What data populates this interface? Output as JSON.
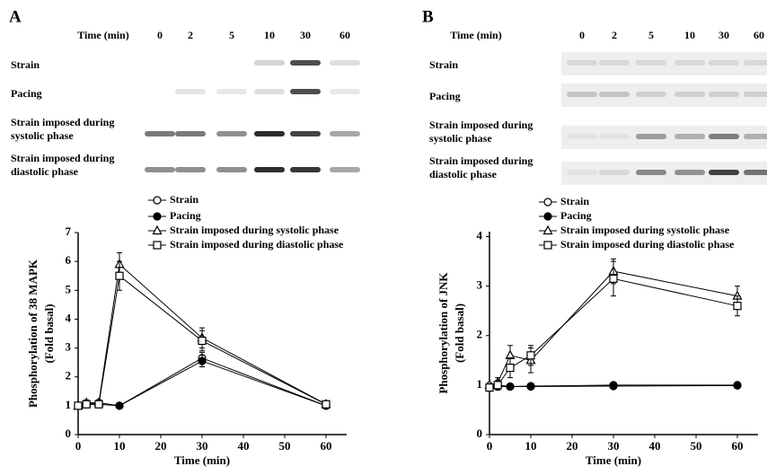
{
  "panels": [
    {
      "label": "A",
      "blot": {
        "time_header": "Time (min)",
        "times": [
          "0",
          "2",
          "5",
          "10",
          "30",
          "60"
        ],
        "rows": [
          [
            "Strain"
          ],
          [
            "Pacing"
          ],
          [
            "Strain imposed during",
            "systolic phase"
          ],
          [
            "Strain imposed during",
            "diastolic phase"
          ]
        ]
      }
    },
    {
      "label": "B",
      "blot": {
        "time_header": "Time (min)",
        "times": [
          "0",
          "2",
          "5",
          "10",
          "30",
          "60"
        ],
        "rows": [
          [
            "Strain"
          ],
          [
            "Pacing"
          ],
          [
            "Strain imposed during",
            "systolic phase"
          ],
          [
            "Strain imposed during",
            "diastolic phase"
          ]
        ]
      }
    }
  ],
  "chart_data": [
    {
      "type": "line",
      "xlabel": "Time (min)",
      "ylabel": [
        "Phosphorylation of 38 MAPK",
        "(Fold basal)"
      ],
      "x": [
        0,
        2,
        5,
        10,
        30,
        60
      ],
      "xlim": [
        0,
        65
      ],
      "xticks": [
        0,
        10,
        20,
        30,
        40,
        50,
        60
      ],
      "ylim": [
        0,
        7
      ],
      "yticks": [
        0,
        1,
        2,
        3,
        4,
        5,
        6,
        7
      ],
      "series": [
        {
          "name": "Strain",
          "color": "#000000",
          "marker": "circle-open",
          "values": [
            1,
            1.05,
            1.1,
            1.0,
            2.65,
            1.0
          ],
          "errors": [
            0.05,
            0.05,
            0.05,
            0.05,
            0.2,
            0.05
          ]
        },
        {
          "name": "Pacing",
          "color": "#000000",
          "marker": "circle-filled",
          "values": [
            1,
            1.05,
            1.05,
            1.0,
            2.55,
            1.0
          ],
          "errors": [
            0.05,
            0.05,
            0.05,
            0.05,
            0.2,
            0.05
          ]
        },
        {
          "name": "Strain imposed during systolic phase",
          "color": "#000000",
          "marker": "triangle-open",
          "values": [
            1,
            1.1,
            1.1,
            5.9,
            3.35,
            1.05
          ],
          "errors": [
            0.05,
            0.1,
            0.1,
            0.4,
            0.35,
            0.1
          ]
        },
        {
          "name": "Strain imposed during diastolic phase",
          "color": "#000000",
          "marker": "square-open",
          "values": [
            1,
            1.05,
            1.05,
            5.5,
            3.25,
            1.05
          ],
          "errors": [
            0.05,
            0.1,
            0.1,
            0.5,
            0.35,
            0.1
          ]
        }
      ]
    },
    {
      "type": "line",
      "xlabel": "Time (min)",
      "ylabel": [
        "Phosphorylation of JNK",
        "(Fold basal)"
      ],
      "x": [
        0,
        2,
        5,
        10,
        30,
        60
      ],
      "xlim": [
        0,
        65
      ],
      "xticks": [
        0,
        10,
        20,
        30,
        40,
        50,
        60
      ],
      "ylim": [
        0,
        4.1
      ],
      "yticks": [
        0,
        1,
        2,
        3,
        4
      ],
      "series": [
        {
          "name": "Strain",
          "color": "#000000",
          "marker": "circle-open",
          "values": [
            0.95,
            1.0,
            0.97,
            0.98,
            1.0,
            1.0
          ],
          "errors": [
            0.03,
            0.03,
            0.03,
            0.03,
            0.05,
            0.05
          ]
        },
        {
          "name": "Pacing",
          "color": "#000000",
          "marker": "circle-filled",
          "values": [
            0.95,
            0.97,
            0.97,
            0.97,
            0.98,
            0.99
          ],
          "errors": [
            0.03,
            0.03,
            0.03,
            0.03,
            0.05,
            0.05
          ]
        },
        {
          "name": "Strain imposed during systolic phase",
          "color": "#000000",
          "marker": "triangle-open",
          "values": [
            1,
            1.05,
            1.6,
            1.5,
            3.3,
            2.8
          ],
          "errors": [
            0.05,
            0.1,
            0.2,
            0.25,
            0.25,
            0.2
          ]
        },
        {
          "name": "Strain imposed during diastolic phase",
          "color": "#000000",
          "marker": "square-open",
          "values": [
            0.95,
            1.0,
            1.35,
            1.6,
            3.15,
            2.6
          ],
          "errors": [
            0.05,
            0.1,
            0.2,
            0.2,
            0.35,
            0.2
          ]
        }
      ]
    }
  ]
}
